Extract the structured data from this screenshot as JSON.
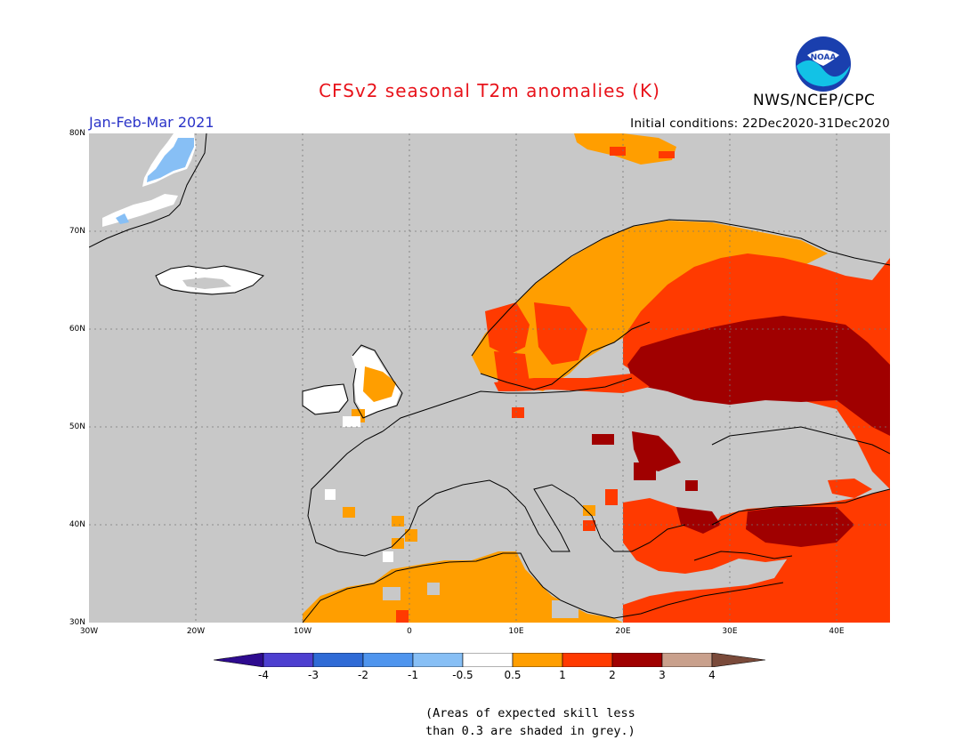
{
  "header": {
    "title": "CFSv2 seasonal T2m anomalies (K)",
    "period": "Jan-Feb-Mar 2021",
    "initial_conditions": "Initial conditions: 22Dec2020-31Dec2020",
    "agency": "NWS/NCEP/CPC",
    "logo_text": "NOAA"
  },
  "map": {
    "region": "Europe",
    "lat_ticks": [
      "80N",
      "70N",
      "60N",
      "50N",
      "40N",
      "30N"
    ],
    "lon_ticks": [
      "30W",
      "20W",
      "10W",
      "0",
      "10E",
      "20E",
      "30E",
      "40E"
    ],
    "grey_color": "#c8c8c8",
    "ocean_color": "#c8c8c8",
    "anomaly_regions": [
      {
        "area": "Greenland east coast",
        "class": "-1 to -0.5",
        "color": "#7ab9f5"
      },
      {
        "area": "Iceland",
        "class": "-0.5 to 0.5",
        "color": "#ffffff"
      },
      {
        "area": "Norway / Sweden",
        "class": "0.5 to 1",
        "color": "#ff9e00"
      },
      {
        "area": "Finland / NW Russia",
        "class": "1 to 2",
        "color": "#ff3a00"
      },
      {
        "area": "Western Russia / Baltics",
        "class": "2 to 3",
        "color": "#a00000"
      },
      {
        "area": "North Africa",
        "class": "0.5 to 1",
        "color": "#ff9e00"
      },
      {
        "area": "Turkey / Middle East",
        "class": "1 to 2",
        "color": "#ff3a00"
      },
      {
        "area": "Svalbard",
        "class": "0.5 to 1",
        "color": "#ff9e00"
      }
    ]
  },
  "colorbar": {
    "labels": [
      "-4",
      "-3",
      "-2",
      "-1",
      "-0.5",
      "0.5",
      "1",
      "2",
      "3",
      "4"
    ],
    "colors": [
      "#2e0b8f",
      "#4d3fd0",
      "#2f6bd6",
      "#4f95ee",
      "#87bff5",
      "#ffffff",
      "#ff9e00",
      "#ff3a00",
      "#a00000",
      "#c9a08c",
      "#7a4a3a"
    ]
  },
  "footnote": {
    "line1": "(Areas of expected skill less",
    "line2": "than 0.3 are shaded in grey.)"
  }
}
